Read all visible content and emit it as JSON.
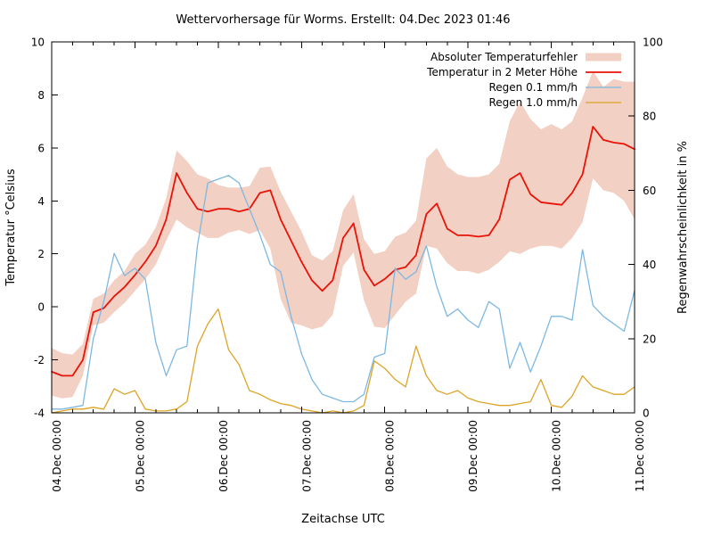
{
  "page": {
    "background": "#ffffff"
  },
  "chart_data": {
    "type": "line",
    "title": "Wettervorhersage für Worms. Erstellt: 04.Dec 2023 01:46",
    "xlabel": "Zeitachse UTC",
    "ylabel_left": "Temperatur °Celsius",
    "ylabel_right": "Regenwahrscheinlichkeit in %",
    "ylim_left": [
      -4,
      10
    ],
    "ylim_right": [
      0,
      100
    ],
    "y_left_ticks": [
      10,
      8,
      6,
      4,
      2,
      0,
      -2,
      -4
    ],
    "y_right_ticks": [
      100,
      80,
      60,
      40,
      20,
      0
    ],
    "x_tick_labels": [
      "04.Dec 00:00",
      "05.Dec 00:00",
      "06.Dec 00:00",
      "07.Dec 00:00",
      "08.Dec 00:00",
      "09.Dec 00:00",
      "10.Dec 00:00",
      "11.Dec 00:00"
    ],
    "x_minor_step_hours": 6,
    "grid": false,
    "legend_position": "top-right",
    "x_hours": [
      0,
      3,
      6,
      9,
      12,
      15,
      18,
      21,
      24,
      27,
      30,
      33,
      36,
      39,
      42,
      45,
      48,
      51,
      54,
      57,
      60,
      63,
      66,
      69,
      72,
      75,
      78,
      81,
      84,
      87,
      90,
      93,
      96,
      99,
      102,
      105,
      108,
      111,
      114,
      117,
      120,
      123,
      126,
      129,
      132,
      135,
      138,
      141,
      144,
      147,
      150,
      153,
      156,
      159,
      162,
      165,
      168
    ],
    "series": [
      {
        "name": "Absoluter Temperaturfehler",
        "type": "band",
        "axis": "left",
        "color": "#f2d0c3",
        "upper": [
          -1.55,
          -1.75,
          -1.8,
          -1.4,
          0.3,
          0.5,
          1.0,
          1.35,
          2.0,
          2.35,
          3.0,
          4.1,
          5.9,
          5.5,
          5.0,
          4.85,
          4.6,
          4.5,
          4.5,
          4.55,
          5.25,
          5.3,
          4.35,
          3.6,
          2.85,
          1.95,
          1.75,
          2.1,
          3.65,
          4.25,
          2.55,
          2.0,
          2.1,
          2.65,
          2.8,
          3.25,
          5.6,
          6.0,
          5.3,
          5.0,
          4.9,
          4.9,
          5.0,
          5.4,
          7.0,
          7.75,
          7.1,
          6.7,
          6.9,
          6.7,
          7.0,
          7.9,
          8.9,
          8.3,
          8.6,
          8.5,
          8.5
        ],
        "lower": [
          -3.35,
          -3.45,
          -3.4,
          -2.6,
          -0.7,
          -0.6,
          -0.2,
          0.15,
          0.6,
          1.05,
          1.6,
          2.5,
          3.3,
          3.0,
          2.8,
          2.6,
          2.6,
          2.8,
          2.9,
          2.75,
          2.9,
          2.2,
          0.3,
          -0.6,
          -0.7,
          -0.85,
          -0.75,
          -0.3,
          1.55,
          2.05,
          0.25,
          -0.75,
          -0.8,
          -0.3,
          0.2,
          0.5,
          2.3,
          2.2,
          1.65,
          1.35,
          1.35,
          1.25,
          1.4,
          1.7,
          2.1,
          2.0,
          2.2,
          2.3,
          2.3,
          2.2,
          2.6,
          3.2,
          4.85,
          4.4,
          4.3,
          4.0,
          3.3
        ]
      },
      {
        "name": "Temperatur in 2 Meter Höhe",
        "type": "line",
        "axis": "left",
        "color": "#e81309",
        "values": [
          -2.45,
          -2.6,
          -2.6,
          -2.0,
          -0.2,
          -0.05,
          0.4,
          0.75,
          1.2,
          1.7,
          2.3,
          3.3,
          5.05,
          4.3,
          3.7,
          3.6,
          3.7,
          3.7,
          3.6,
          3.7,
          4.3,
          4.4,
          3.3,
          2.5,
          1.7,
          1.0,
          0.6,
          1.0,
          2.6,
          3.15,
          1.4,
          0.8,
          1.05,
          1.4,
          1.5,
          1.95,
          3.5,
          3.9,
          2.95,
          2.7,
          2.7,
          2.65,
          2.7,
          3.3,
          4.8,
          5.05,
          4.25,
          3.95,
          3.9,
          3.85,
          4.3,
          5.0,
          6.8,
          6.3,
          6.2,
          6.15,
          5.95
        ]
      },
      {
        "name": "Regen 0.1 mm/h",
        "type": "line",
        "axis": "right",
        "color": "#7db8e2",
        "values": [
          1,
          1,
          1.5,
          2,
          20,
          30,
          43,
          37,
          39,
          36,
          19,
          10,
          17,
          18,
          45,
          62,
          63,
          64,
          62,
          55,
          48,
          40,
          38,
          26,
          16,
          9,
          5,
          4,
          3,
          3,
          5,
          15,
          16,
          39,
          36,
          38,
          45,
          34,
          26,
          28,
          25,
          23,
          30,
          28,
          12,
          19,
          11,
          18,
          26,
          26,
          25,
          44,
          29,
          26,
          24,
          22,
          33
        ]
      },
      {
        "name": "Regen 1.0 mm/h",
        "type": "line",
        "axis": "right",
        "color": "#dda426",
        "values": [
          0,
          0.5,
          1,
          1,
          1.5,
          1,
          6.5,
          5,
          6,
          1,
          0.5,
          0.5,
          1,
          3,
          18,
          24,
          28,
          17,
          13,
          6,
          5,
          3.5,
          2.5,
          2,
          1,
          0.5,
          0,
          0.5,
          0,
          0.5,
          2,
          14,
          12,
          9,
          7,
          18,
          10,
          6,
          5,
          6,
          4,
          3,
          2.5,
          2,
          2,
          2.5,
          3,
          9,
          2,
          1.5,
          4.5,
          10,
          7,
          6,
          5,
          5,
          7
        ]
      }
    ]
  }
}
